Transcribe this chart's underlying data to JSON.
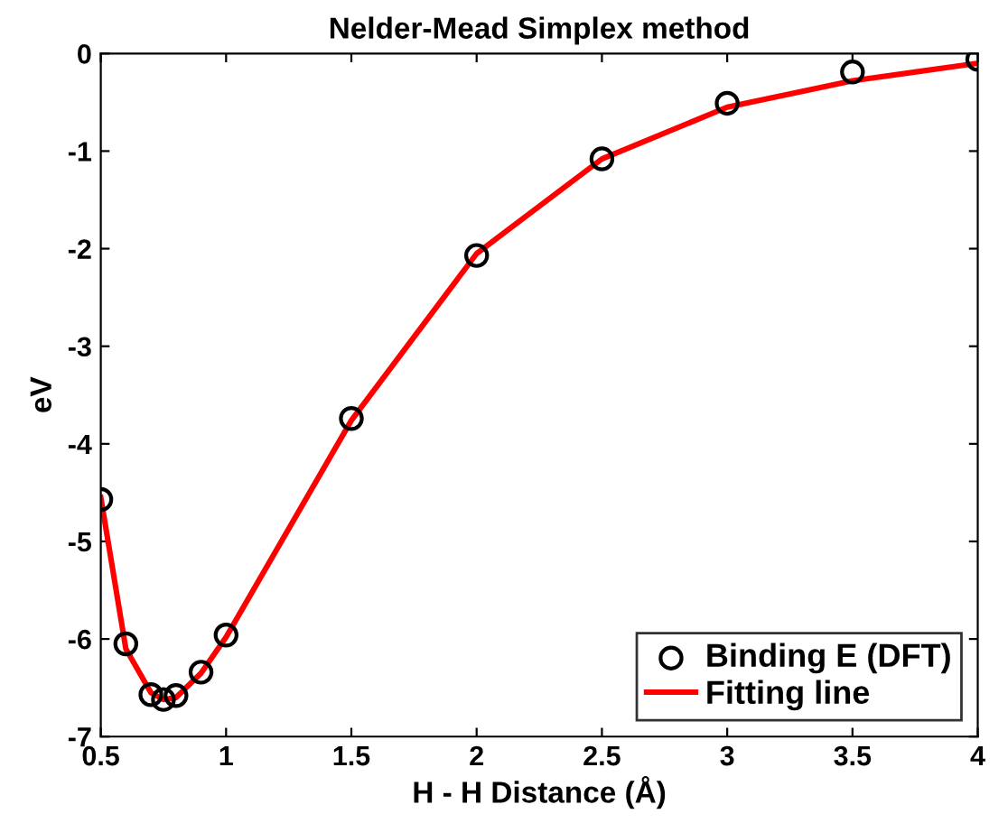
{
  "chart_data": {
    "type": "line",
    "title": "Nelder-Mead Simplex method",
    "xlabel": "H - H Distance (Å)",
    "ylabel": "eV",
    "series": [
      {
        "name": "Binding E (DFT)",
        "type": "scatter",
        "color": "#000000",
        "marker": "circle",
        "x": [
          0.5,
          0.6,
          0.7,
          0.75,
          0.8,
          0.9,
          1.0,
          1.5,
          2.0,
          2.5,
          3.0,
          3.5,
          4.0
        ],
        "values": [
          -4.57,
          -6.05,
          -6.57,
          -6.62,
          -6.58,
          -6.34,
          -5.96,
          -3.74,
          -2.07,
          -1.08,
          -0.51,
          -0.19,
          -0.06
        ]
      },
      {
        "name": "Fitting line",
        "color": "#ff0000",
        "line_style": "solid",
        "x": [
          0.5,
          0.6,
          0.7,
          0.75,
          0.8,
          0.9,
          1.0,
          1.5,
          2.0,
          2.5,
          3.0,
          3.5,
          4.0
        ],
        "values": [
          -4.55,
          -6.1,
          -6.55,
          -6.62,
          -6.6,
          -6.35,
          -5.98,
          -3.76,
          -2.05,
          -1.08,
          -0.55,
          -0.28,
          -0.1
        ]
      }
    ],
    "xlim": [
      0.5,
      4
    ],
    "xticks": [
      0.5,
      1,
      1.5,
      2,
      2.5,
      3,
      3.5,
      4
    ],
    "ylim": [
      -7,
      0
    ],
    "yticks": [
      -7,
      -6,
      -5,
      -4,
      -3,
      -2,
      -1,
      0
    ],
    "grid": false,
    "legend": "bottom right"
  }
}
